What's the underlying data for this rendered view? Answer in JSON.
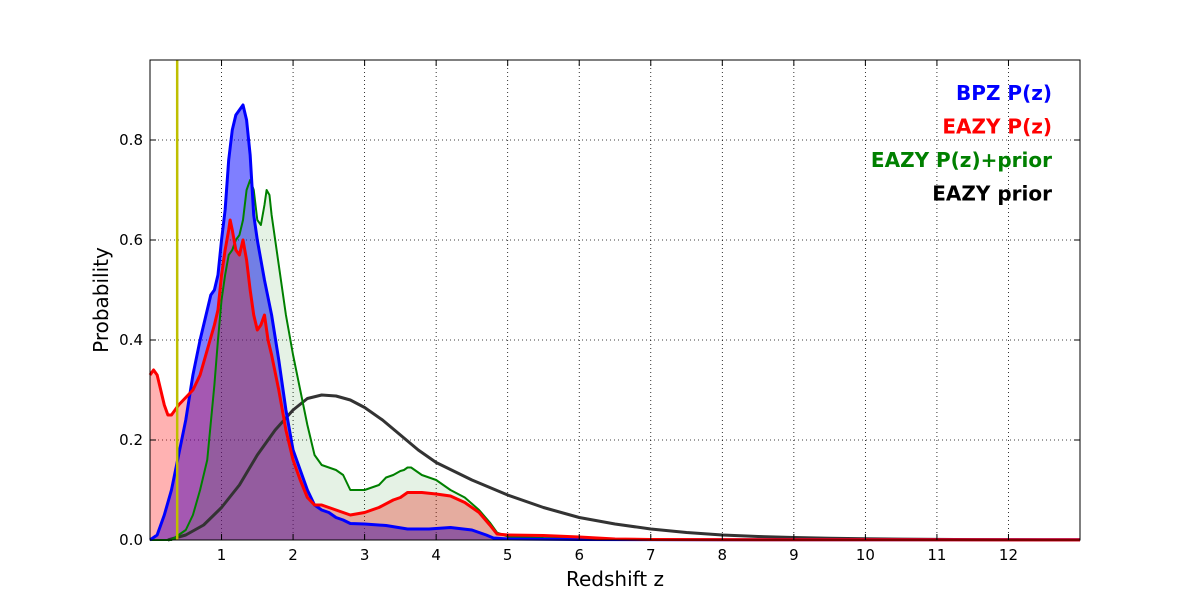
{
  "chart_data": {
    "type": "area",
    "title": "",
    "xlabel": "Redshift z",
    "ylabel": "Probability",
    "xlim": [
      0,
      13
    ],
    "ylim": [
      0,
      0.96
    ],
    "grid": true,
    "xticks": [
      1,
      2,
      3,
      4,
      5,
      6,
      7,
      8,
      9,
      10,
      11,
      12
    ],
    "xtick_labels": [
      "1",
      "2",
      "3",
      "4",
      "5",
      "6",
      "7",
      "8",
      "9",
      "10",
      "11",
      "12"
    ],
    "yticks": [
      0.0,
      0.2,
      0.4,
      0.6,
      0.8
    ],
    "ytick_labels": [
      "0.0",
      "0.2",
      "0.4",
      "0.6",
      "0.8"
    ],
    "vline": {
      "x": 0.38,
      "color": "#bfbf00"
    },
    "legend_position": "top-right",
    "series": [
      {
        "name": "BPZ P(z)",
        "color": "#0000ff",
        "fill": "#0000ff",
        "fill_opacity": 0.5,
        "points": [
          [
            0,
            0
          ],
          [
            0.1,
            0.01
          ],
          [
            0.2,
            0.05
          ],
          [
            0.3,
            0.1
          ],
          [
            0.4,
            0.17
          ],
          [
            0.5,
            0.24
          ],
          [
            0.6,
            0.33
          ],
          [
            0.7,
            0.4
          ],
          [
            0.8,
            0.46
          ],
          [
            0.85,
            0.49
          ],
          [
            0.9,
            0.5
          ],
          [
            0.95,
            0.53
          ],
          [
            1.0,
            0.6
          ],
          [
            1.05,
            0.66
          ],
          [
            1.1,
            0.76
          ],
          [
            1.15,
            0.82
          ],
          [
            1.2,
            0.85
          ],
          [
            1.25,
            0.86
          ],
          [
            1.3,
            0.87
          ],
          [
            1.35,
            0.84
          ],
          [
            1.4,
            0.77
          ],
          [
            1.45,
            0.65
          ],
          [
            1.5,
            0.6
          ],
          [
            1.6,
            0.52
          ],
          [
            1.7,
            0.45
          ],
          [
            1.8,
            0.36
          ],
          [
            1.9,
            0.26
          ],
          [
            2.0,
            0.18
          ],
          [
            2.1,
            0.14
          ],
          [
            2.2,
            0.1
          ],
          [
            2.3,
            0.07
          ],
          [
            2.4,
            0.06
          ],
          [
            2.5,
            0.055
          ],
          [
            2.6,
            0.045
          ],
          [
            2.7,
            0.04
          ],
          [
            2.8,
            0.033
          ],
          [
            3.0,
            0.032
          ],
          [
            3.3,
            0.029
          ],
          [
            3.6,
            0.022
          ],
          [
            3.9,
            0.022
          ],
          [
            4.2,
            0.025
          ],
          [
            4.5,
            0.02
          ],
          [
            4.7,
            0.01
          ],
          [
            4.8,
            0.004
          ],
          [
            5,
            0.002
          ],
          [
            6,
            0.001
          ],
          [
            8,
            0.0005
          ],
          [
            10,
            0.0005
          ],
          [
            12,
            0.0004
          ],
          [
            13,
            0.0004
          ]
        ]
      },
      {
        "name": "EAZY P(z)",
        "color": "#ff0000",
        "fill": "#ff0000",
        "fill_opacity": 0.3,
        "points": [
          [
            0,
            0.33
          ],
          [
            0.05,
            0.34
          ],
          [
            0.1,
            0.33
          ],
          [
            0.15,
            0.3
          ],
          [
            0.2,
            0.27
          ],
          [
            0.25,
            0.25
          ],
          [
            0.3,
            0.25
          ],
          [
            0.35,
            0.26
          ],
          [
            0.4,
            0.27
          ],
          [
            0.5,
            0.285
          ],
          [
            0.6,
            0.3
          ],
          [
            0.7,
            0.33
          ],
          [
            0.8,
            0.38
          ],
          [
            0.9,
            0.43
          ],
          [
            0.95,
            0.46
          ],
          [
            1.0,
            0.53
          ],
          [
            1.05,
            0.58
          ],
          [
            1.1,
            0.62
          ],
          [
            1.12,
            0.64
          ],
          [
            1.15,
            0.62
          ],
          [
            1.2,
            0.58
          ],
          [
            1.25,
            0.57
          ],
          [
            1.3,
            0.6
          ],
          [
            1.35,
            0.56
          ],
          [
            1.4,
            0.5
          ],
          [
            1.45,
            0.45
          ],
          [
            1.5,
            0.42
          ],
          [
            1.55,
            0.43
          ],
          [
            1.6,
            0.45
          ],
          [
            1.65,
            0.4
          ],
          [
            1.7,
            0.37
          ],
          [
            1.8,
            0.3
          ],
          [
            1.9,
            0.22
          ],
          [
            2.0,
            0.16
          ],
          [
            2.1,
            0.12
          ],
          [
            2.2,
            0.085
          ],
          [
            2.3,
            0.07
          ],
          [
            2.4,
            0.07
          ],
          [
            2.5,
            0.065
          ],
          [
            2.6,
            0.06
          ],
          [
            2.7,
            0.055
          ],
          [
            2.8,
            0.05
          ],
          [
            3.0,
            0.055
          ],
          [
            3.2,
            0.065
          ],
          [
            3.4,
            0.08
          ],
          [
            3.5,
            0.085
          ],
          [
            3.6,
            0.095
          ],
          [
            3.8,
            0.095
          ],
          [
            4.0,
            0.092
          ],
          [
            4.2,
            0.088
          ],
          [
            4.4,
            0.075
          ],
          [
            4.6,
            0.055
          ],
          [
            4.75,
            0.03
          ],
          [
            4.85,
            0.012
          ],
          [
            5.0,
            0.01
          ],
          [
            5.5,
            0.009
          ],
          [
            6.0,
            0.006
          ],
          [
            6.5,
            0.002
          ],
          [
            7,
            0.001
          ],
          [
            9,
            0.0005
          ],
          [
            13,
            0.0003
          ]
        ]
      },
      {
        "name": "EAZY P(z)+prior",
        "color": "#008000",
        "fill": "#008000",
        "fill_opacity": 0.1,
        "points": [
          [
            0,
            0
          ],
          [
            0.3,
            0
          ],
          [
            0.5,
            0.02
          ],
          [
            0.6,
            0.05
          ],
          [
            0.7,
            0.1
          ],
          [
            0.8,
            0.16
          ],
          [
            0.9,
            0.31
          ],
          [
            0.95,
            0.4
          ],
          [
            1.0,
            0.48
          ],
          [
            1.05,
            0.53
          ],
          [
            1.1,
            0.57
          ],
          [
            1.15,
            0.58
          ],
          [
            1.2,
            0.6
          ],
          [
            1.25,
            0.61
          ],
          [
            1.3,
            0.64
          ],
          [
            1.35,
            0.7
          ],
          [
            1.4,
            0.72
          ],
          [
            1.45,
            0.7
          ],
          [
            1.5,
            0.64
          ],
          [
            1.55,
            0.63
          ],
          [
            1.6,
            0.67
          ],
          [
            1.63,
            0.7
          ],
          [
            1.67,
            0.69
          ],
          [
            1.7,
            0.65
          ],
          [
            1.75,
            0.6
          ],
          [
            1.8,
            0.55
          ],
          [
            1.9,
            0.45
          ],
          [
            2.0,
            0.37
          ],
          [
            2.1,
            0.3
          ],
          [
            2.2,
            0.23
          ],
          [
            2.3,
            0.17
          ],
          [
            2.4,
            0.15
          ],
          [
            2.5,
            0.145
          ],
          [
            2.6,
            0.14
          ],
          [
            2.7,
            0.13
          ],
          [
            2.8,
            0.1
          ],
          [
            2.9,
            0.1
          ],
          [
            3.0,
            0.1
          ],
          [
            3.1,
            0.105
          ],
          [
            3.2,
            0.11
          ],
          [
            3.3,
            0.125
          ],
          [
            3.4,
            0.13
          ],
          [
            3.5,
            0.138
          ],
          [
            3.55,
            0.14
          ],
          [
            3.6,
            0.145
          ],
          [
            3.65,
            0.145
          ],
          [
            3.7,
            0.14
          ],
          [
            3.8,
            0.13
          ],
          [
            4.0,
            0.12
          ],
          [
            4.2,
            0.1
          ],
          [
            4.4,
            0.085
          ],
          [
            4.6,
            0.06
          ],
          [
            4.75,
            0.035
          ],
          [
            4.85,
            0.015
          ],
          [
            5.0,
            0.007
          ],
          [
            5.5,
            0.004
          ],
          [
            6,
            0.003
          ],
          [
            7,
            0.001
          ],
          [
            9,
            0.0005
          ],
          [
            13,
            0.0003
          ]
        ]
      },
      {
        "name": "EAZY prior",
        "color": "#333333",
        "fill": "none",
        "fill_opacity": 0,
        "points": [
          [
            0.25,
            0
          ],
          [
            0.5,
            0.01
          ],
          [
            0.75,
            0.03
          ],
          [
            1.0,
            0.065
          ],
          [
            1.25,
            0.11
          ],
          [
            1.5,
            0.17
          ],
          [
            1.75,
            0.22
          ],
          [
            2.0,
            0.26
          ],
          [
            2.2,
            0.283
          ],
          [
            2.4,
            0.29
          ],
          [
            2.6,
            0.288
          ],
          [
            2.8,
            0.28
          ],
          [
            3.0,
            0.265
          ],
          [
            3.25,
            0.24
          ],
          [
            3.5,
            0.21
          ],
          [
            3.75,
            0.18
          ],
          [
            4.0,
            0.155
          ],
          [
            4.5,
            0.12
          ],
          [
            5.0,
            0.09
          ],
          [
            5.5,
            0.065
          ],
          [
            6.0,
            0.045
          ],
          [
            6.5,
            0.032
          ],
          [
            7.0,
            0.022
          ],
          [
            7.5,
            0.015
          ],
          [
            8.0,
            0.01
          ],
          [
            8.5,
            0.007
          ],
          [
            9.0,
            0.005
          ],
          [
            9.5,
            0.0035
          ],
          [
            10.0,
            0.0025
          ],
          [
            10.5,
            0.0018
          ],
          [
            11.0,
            0.0012
          ],
          [
            11.5,
            0.0008
          ],
          [
            12.0,
            0.0005
          ],
          [
            12.5,
            0.0003
          ],
          [
            13,
            0.0002
          ]
        ]
      }
    ]
  }
}
